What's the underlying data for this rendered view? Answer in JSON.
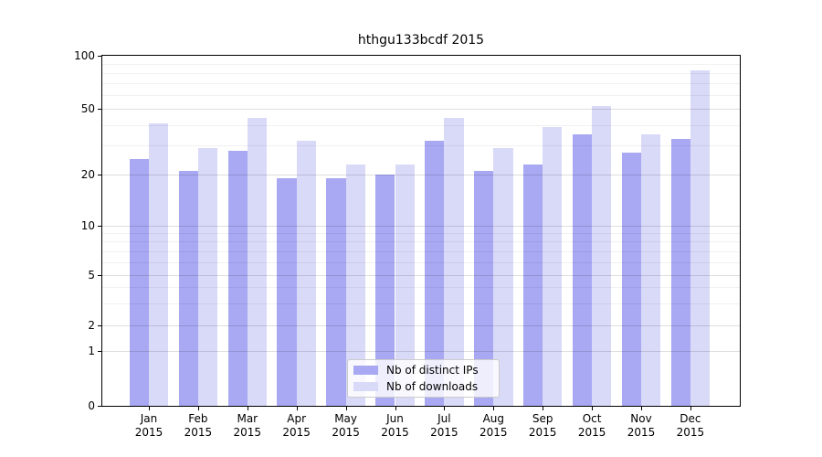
{
  "chart_data": {
    "type": "bar",
    "title": "hthgu133bcdf 2015",
    "categories": [
      "Jan",
      "Feb",
      "Mar",
      "Apr",
      "May",
      "Jun",
      "Jul",
      "Aug",
      "Sep",
      "Oct",
      "Nov",
      "Dec"
    ],
    "year_label": "2015",
    "series": [
      {
        "name": "Nb of distinct IPs",
        "color": "#a8a8f3",
        "values": [
          25,
          21,
          28,
          19,
          19,
          20,
          32,
          21,
          23,
          35,
          27,
          33
        ]
      },
      {
        "name": "Nb of downloads",
        "color": "#d9d9f8",
        "values": [
          41,
          29,
          44,
          32,
          23,
          23,
          44,
          29,
          39,
          52,
          35,
          83
        ]
      }
    ],
    "yticks": [
      0,
      1,
      2,
      5,
      10,
      20,
      50,
      100
    ],
    "minor_yticks": [
      3,
      4,
      6,
      7,
      8,
      9,
      30,
      40,
      60,
      70,
      80,
      90
    ],
    "ylim": [
      0,
      100
    ],
    "yscale": "symlog-like",
    "grid": true,
    "legend_position": "lower center",
    "axis_color": "#000000"
  }
}
